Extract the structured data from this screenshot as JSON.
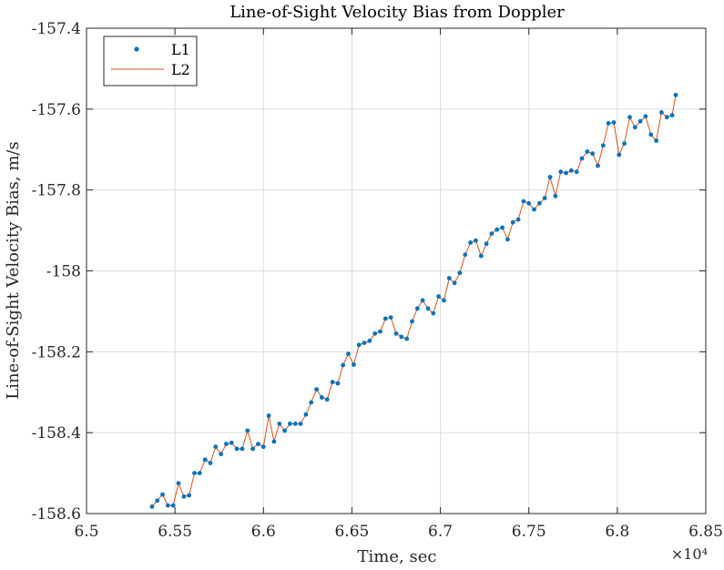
{
  "chart_data": {
    "type": "line",
    "title": "Line-of-Sight Velocity Bias from Doppler",
    "xlabel": "Time, sec",
    "ylabel": "Line-of-Sight Velocity Bias, m/s",
    "x_exponent_label": "×10⁴",
    "xlim": [
      65000,
      68500
    ],
    "ylim": [
      -158.6,
      -157.4
    ],
    "x_ticks": [
      65000,
      65500,
      66000,
      66500,
      67000,
      67500,
      68000,
      68500
    ],
    "x_tick_labels": [
      "6.5",
      "6.55",
      "6.6",
      "6.65",
      "6.7",
      "6.75",
      "6.8",
      "6.85"
    ],
    "y_ticks": [
      -158.6,
      -158.4,
      -158.2,
      -158.0,
      -157.8,
      -157.6,
      -157.4
    ],
    "y_tick_labels": [
      "-158.6",
      "-158.4",
      "-158.2",
      "-158",
      "-157.8",
      "-157.6",
      "-157.4"
    ],
    "grid": true,
    "legend_location": "top-left",
    "series": [
      {
        "name": "L1",
        "style": "markers",
        "color": "#0072BD"
      },
      {
        "name": "L2",
        "style": "line",
        "color": "#D95319"
      }
    ],
    "x": [
      65370,
      65400,
      65430,
      65460,
      65490,
      65520,
      65550,
      65580,
      65610,
      65640,
      65670,
      65700,
      65730,
      65760,
      65790,
      65820,
      65850,
      65880,
      65910,
      65940,
      65970,
      66000,
      66030,
      66060,
      66090,
      66120,
      66150,
      66180,
      66210,
      66240,
      66270,
      66300,
      66330,
      66360,
      66390,
      66420,
      66450,
      66480,
      66510,
      66540,
      66570,
      66600,
      66630,
      66660,
      66690,
      66720,
      66750,
      66780,
      66810,
      66840,
      66870,
      66900,
      66930,
      66960,
      66990,
      67020,
      67050,
      67080,
      67110,
      67140,
      67170,
      67200,
      67230,
      67260,
      67290,
      67320,
      67350,
      67380,
      67410,
      67440,
      67470,
      67500,
      67530,
      67560,
      67590,
      67620,
      67650,
      67680,
      67710,
      67740,
      67770,
      67800,
      67830,
      67860,
      67890,
      67920,
      67950,
      67980,
      68010,
      68040,
      68070,
      68100,
      68130,
      68160,
      68190,
      68220,
      68250,
      68280,
      68310,
      68330
    ],
    "y": [
      -158.583,
      -158.568,
      -158.553,
      -158.58,
      -158.58,
      -158.525,
      -158.558,
      -158.555,
      -158.5,
      -158.5,
      -158.467,
      -158.475,
      -158.435,
      -158.453,
      -158.428,
      -158.425,
      -158.44,
      -158.44,
      -158.395,
      -158.44,
      -158.428,
      -158.435,
      -158.358,
      -158.422,
      -158.378,
      -158.395,
      -158.378,
      -158.378,
      -158.378,
      -158.355,
      -158.325,
      -158.293,
      -158.313,
      -158.318,
      -158.275,
      -158.278,
      -158.233,
      -158.205,
      -158.232,
      -158.183,
      -158.178,
      -158.173,
      -158.155,
      -158.15,
      -158.118,
      -158.115,
      -158.155,
      -158.163,
      -158.168,
      -158.125,
      -158.093,
      -158.073,
      -158.093,
      -158.105,
      -158.063,
      -158.073,
      -158.018,
      -158.03,
      -158.005,
      -157.96,
      -157.93,
      -157.925,
      -157.963,
      -157.933,
      -157.908,
      -157.898,
      -157.893,
      -157.922,
      -157.88,
      -157.873,
      -157.828,
      -157.833,
      -157.848,
      -157.833,
      -157.82,
      -157.768,
      -157.815,
      -157.755,
      -157.758,
      -157.752,
      -157.755,
      -157.722,
      -157.705,
      -157.71,
      -157.74,
      -157.69,
      -157.635,
      -157.633,
      -157.713,
      -157.685,
      -157.62,
      -157.645,
      -157.63,
      -157.618,
      -157.663,
      -157.678,
      -157.608,
      -157.62,
      -157.615,
      -157.565
    ]
  }
}
